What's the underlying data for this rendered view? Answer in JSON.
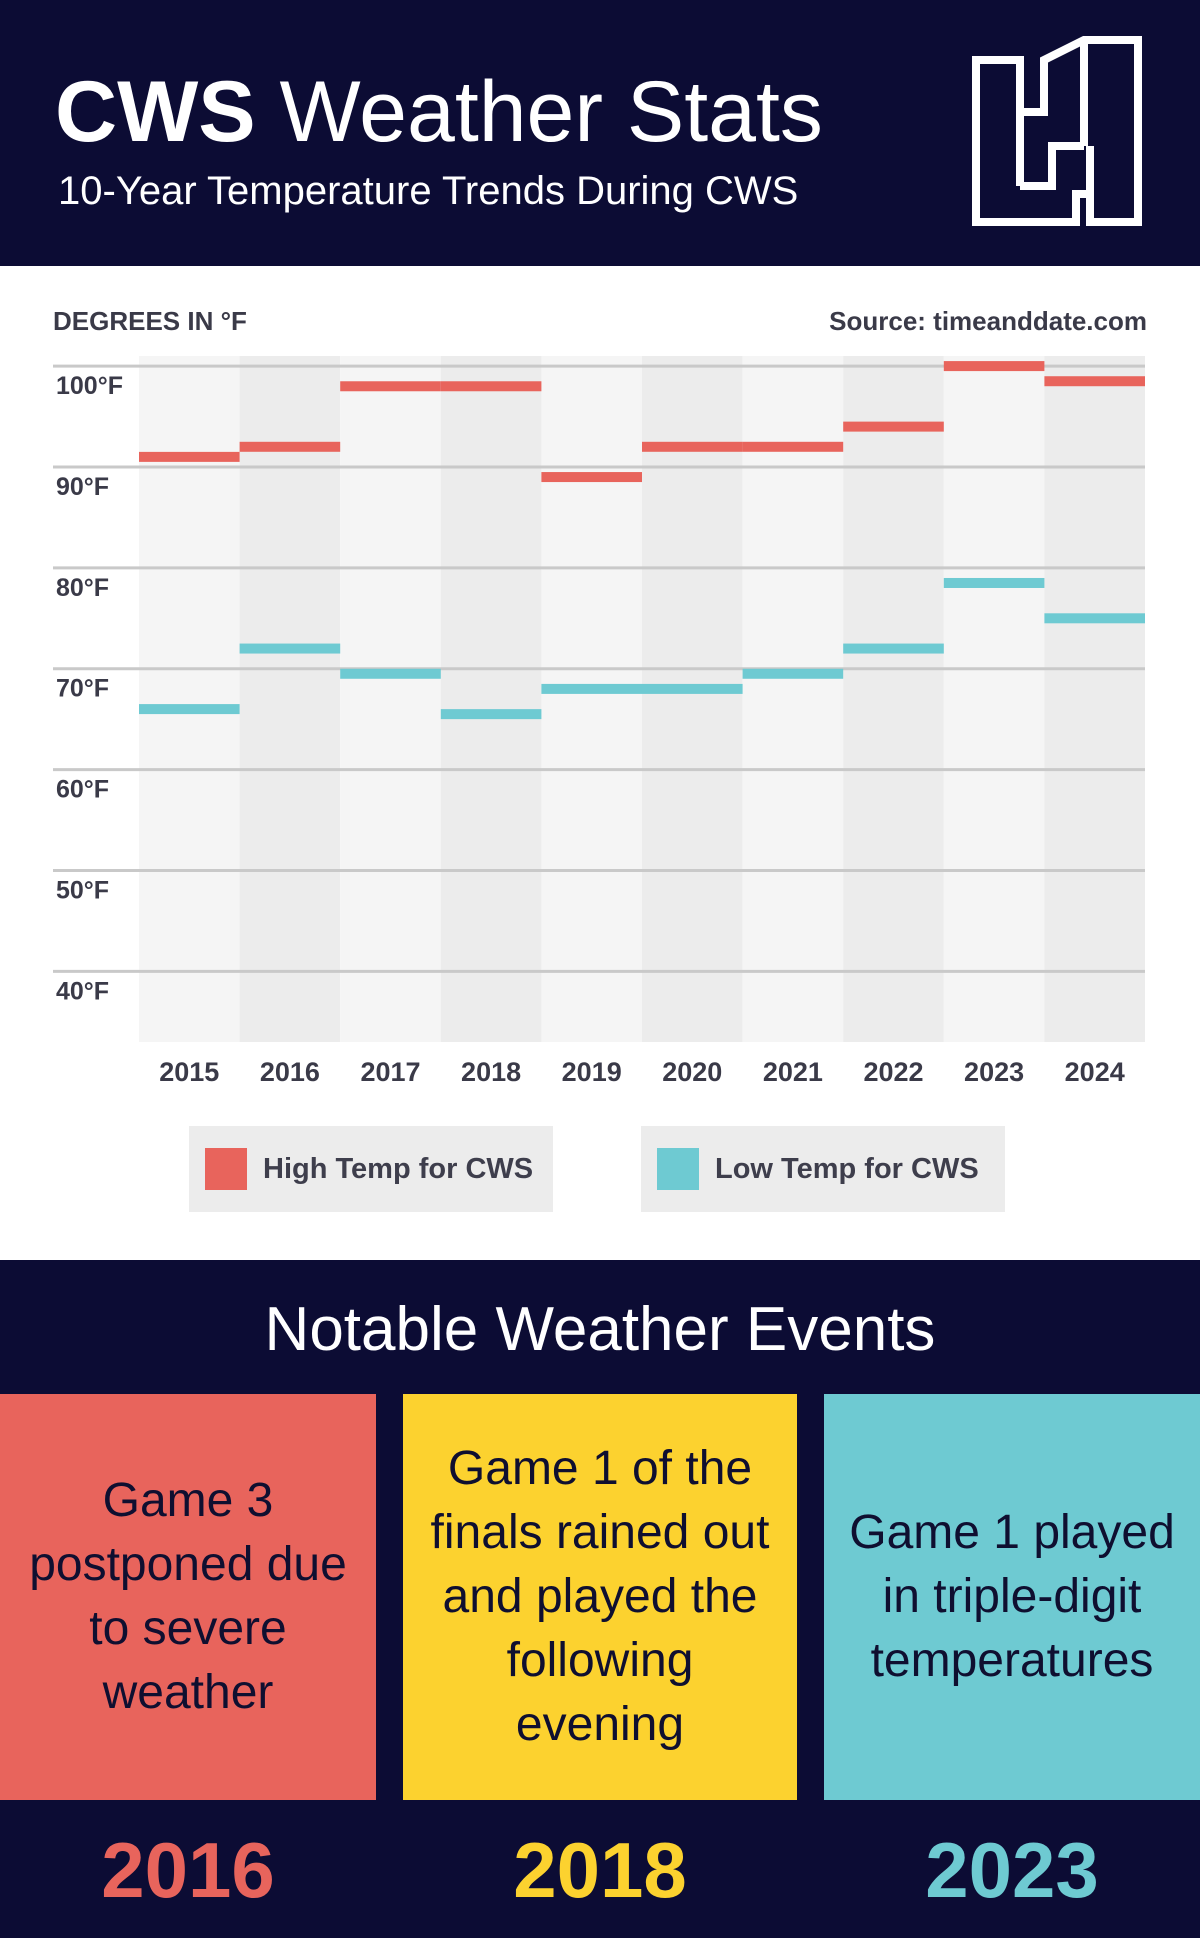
{
  "header": {
    "title_bold": "CWS",
    "title_rest": "Weather Stats",
    "subtitle": "10-Year Temperature Trends During CWS"
  },
  "chart_header": {
    "ylabel": "DEGREES IN °F",
    "source": "Source: timeanddate.com"
  },
  "colors": {
    "navy": "#0c0c34",
    "high": "#e8645c",
    "low": "#6ecad2",
    "yellow": "#fcd22f"
  },
  "chart_data": {
    "type": "bar",
    "ylabel": "DEGREES IN °F",
    "categories": [
      "2015",
      "2016",
      "2017",
      "2018",
      "2019",
      "2020",
      "2021",
      "2022",
      "2023",
      "2024"
    ],
    "series": [
      {
        "name": "High Temp for CWS",
        "color": "#e8645c",
        "values": [
          91,
          92,
          98,
          98,
          89,
          92,
          92,
          94,
          100,
          98.5
        ]
      },
      {
        "name": "Low Temp for CWS",
        "color": "#6ecad2",
        "values": [
          66,
          72,
          69.5,
          65.5,
          68,
          68,
          69.5,
          72,
          78.5,
          75
        ]
      }
    ],
    "yticks": [
      {
        "value": 100,
        "label": "100°F"
      },
      {
        "value": 90,
        "label": "90°F"
      },
      {
        "value": 80,
        "label": "80°F"
      },
      {
        "value": 70,
        "label": "70°F"
      },
      {
        "value": 60,
        "label": "60°F"
      },
      {
        "value": 50,
        "label": "50°F"
      },
      {
        "value": 40,
        "label": "40°F"
      }
    ],
    "ylim": [
      33,
      101
    ],
    "grid": true,
    "legend_position": "bottom"
  },
  "legend": {
    "high_label": "High Temp for CWS",
    "low_label": "Low Temp for CWS"
  },
  "events": {
    "title": "Notable Weather Events",
    "cards": [
      {
        "text": "Game 3 postponed due to severe weather",
        "year": "2016"
      },
      {
        "text": "Game 1 of the finals rained out and played the following evening",
        "year": "2018"
      },
      {
        "text": "Game 1 played in triple-digit temperatures",
        "year": "2023"
      }
    ]
  }
}
